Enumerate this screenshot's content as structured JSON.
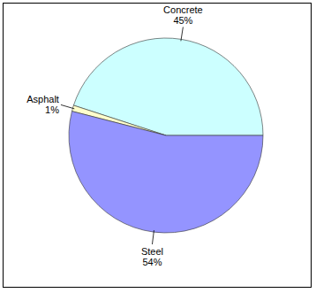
{
  "chart_data": {
    "type": "pie",
    "categories": [
      "Concrete",
      "Asphalt",
      "Steel"
    ],
    "values": [
      45,
      1,
      54
    ],
    "value_labels": [
      "45%",
      "1%",
      "54%"
    ],
    "colors": [
      "#ccffff",
      "#ffffcc",
      "#9494ff"
    ],
    "data_labels": true
  }
}
